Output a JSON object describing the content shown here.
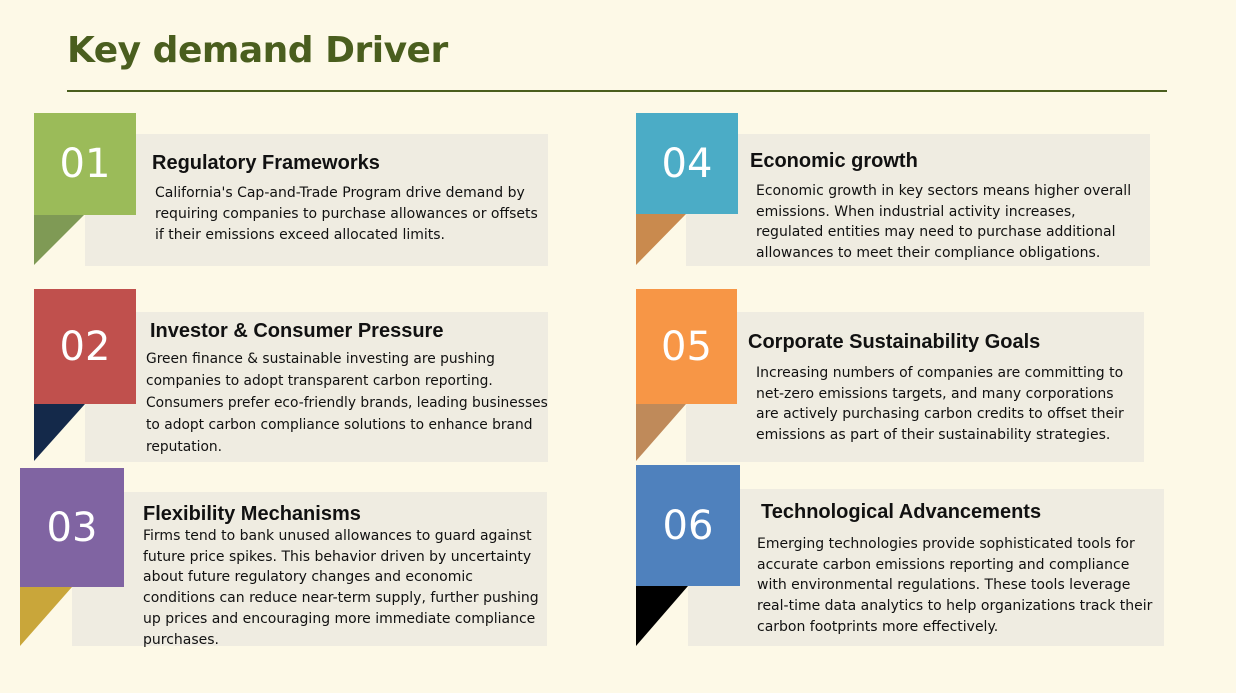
{
  "title": "Key demand Driver",
  "colors": {
    "title": "#4a5e1e",
    "card_bg": "#efece1",
    "page_bg": "#fdf9e7"
  },
  "drivers": [
    {
      "number": "01",
      "title": "Regulatory Frameworks",
      "body": "California's Cap-and-Trade Program drive demand by requiring companies to purchase allowances or offsets if their emissions exceed allocated limits.",
      "badge_color": "#9bbb59",
      "fold_color": "#7f9a55"
    },
    {
      "number": "02",
      "title": "Investor & Consumer Pressure",
      "body": "Green finance & sustainable investing are pushing companies to adopt transparent carbon reporting. Consumers prefer eco-friendly brands, leading businesses to adopt carbon compliance solutions to enhance brand reputation.",
      "badge_color": "#c0504d",
      "fold_color": "#14294a"
    },
    {
      "number": "03",
      "title": "Flexibility Mechanisms",
      "body": "Firms tend to bank unused allowances to guard against future price spikes. This behavior driven by uncertainty about future regulatory changes and economic conditions can reduce near-term supply, further pushing up prices and encouraging more immediate compliance purchases.",
      "badge_color": "#8064a2",
      "fold_color": "#c9a63a"
    },
    {
      "number": "04",
      "title": "Economic growth",
      "body": "Economic growth in key sectors means higher overall emissions. When industrial activity increases, regulated entities may need to purchase additional allowances to meet their compliance obligations.",
      "badge_color": "#4bacc6",
      "fold_color": "#c98a4e"
    },
    {
      "number": "05",
      "title": "Corporate Sustainability Goals",
      "body": "Increasing numbers of companies are committing to net-zero emissions targets, and many corporations are actively purchasing carbon credits to offset their emissions as part of their sustainability strategies.",
      "badge_color": "#f79646",
      "fold_color": "#bf8a5a"
    },
    {
      "number": "06",
      "title": "Technological Advancements",
      "body": "Emerging technologies provide sophisticated tools for accurate carbon emissions reporting and compliance with environmental regulations. These tools leverage real-time data analytics to help organizations track their carbon footprints more effectively.",
      "badge_color": "#4f81bd",
      "fold_color": "#000000"
    }
  ]
}
